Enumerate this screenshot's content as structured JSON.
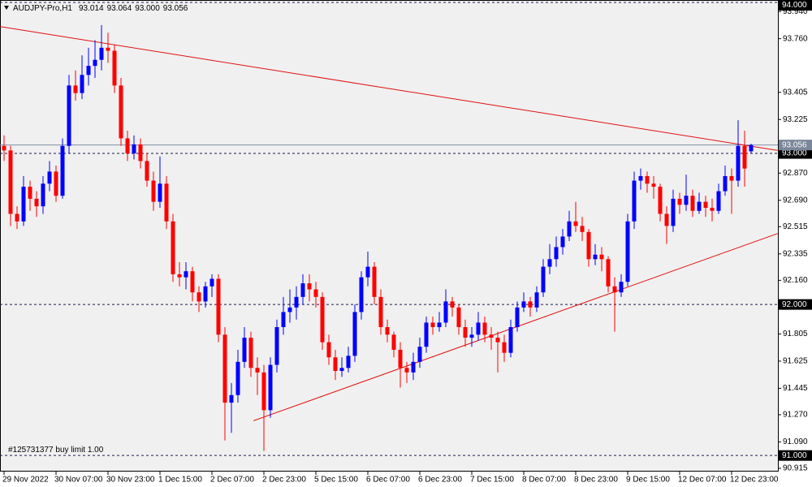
{
  "chart_data": {
    "type": "candlestick",
    "title": "AUDJPY-Pro,H1",
    "header_values": [
      "93.014",
      "93.064",
      "93.000",
      "93.056"
    ],
    "up_color": "#0000ff",
    "down_color": "#ff0000",
    "background": "#f0f0f0",
    "grid": false,
    "ylim": [
      90.915,
      94.0
    ],
    "yticks": [
      {
        "value": 93.94,
        "label": "93.940"
      },
      {
        "value": 93.76,
        "label": "93.760"
      },
      {
        "value": 93.405,
        "label": "93.405"
      },
      {
        "value": 93.225,
        "label": "93.225"
      },
      {
        "value": 92.87,
        "label": "92.870"
      },
      {
        "value": 92.69,
        "label": "92.690"
      },
      {
        "value": 92.515,
        "label": "92.515"
      },
      {
        "value": 92.335,
        "label": "92.335"
      },
      {
        "value": 92.16,
        "label": "92.160"
      },
      {
        "value": 91.805,
        "label": "91.805"
      },
      {
        "value": 91.625,
        "label": "91.625"
      },
      {
        "value": 91.445,
        "label": "91.445"
      },
      {
        "value": 91.27,
        "label": "91.270"
      },
      {
        "value": 91.09,
        "label": "91.090"
      },
      {
        "value": 90.915,
        "label": "90.915"
      }
    ],
    "levels": [
      {
        "value": 94.0,
        "label": "94.000"
      },
      {
        "value": 93.0,
        "label": "93.000"
      },
      {
        "value": 92.0,
        "label": "92.000"
      },
      {
        "value": 91.0,
        "label": "91.000",
        "note": "#125731377 buy limit 1.00"
      }
    ],
    "current_price": {
      "value": 93.056,
      "label": "93.056"
    },
    "trendlines": [
      {
        "color": "#e01010",
        "points": [
          [
            -0.6,
            93.84
          ],
          [
            119.1,
            93.02
          ]
        ]
      },
      {
        "color": "#e01010",
        "points": [
          [
            38.4,
            91.23
          ],
          [
            119.1,
            92.47
          ]
        ]
      }
    ],
    "categories": [
      "29 Nov 2022",
      null,
      null,
      null,
      null,
      null,
      null,
      null,
      "30 Nov 07:00",
      null,
      null,
      null,
      null,
      null,
      null,
      null,
      "30 Nov 23:00",
      null,
      null,
      null,
      null,
      null,
      null,
      null,
      "1 Dec 15:00",
      null,
      null,
      null,
      null,
      null,
      null,
      null,
      "2 Dec 07:00",
      null,
      null,
      null,
      null,
      null,
      null,
      null,
      "2 Dec 23:00",
      null,
      null,
      null,
      null,
      null,
      null,
      null,
      "5 Dec 15:00",
      null,
      null,
      null,
      null,
      null,
      null,
      null,
      "6 Dec 07:00",
      null,
      null,
      null,
      null,
      null,
      null,
      null,
      "6 Dec 23:00",
      null,
      null,
      null,
      null,
      null,
      null,
      null,
      "7 Dec 15:00",
      null,
      null,
      null,
      null,
      null,
      null,
      null,
      "8 Dec 07:00",
      null,
      null,
      null,
      null,
      null,
      null,
      null,
      "8 Dec 23:00",
      null,
      null,
      null,
      null,
      null,
      null,
      null,
      "9 Dec 15:00",
      null,
      null,
      null,
      null,
      null,
      null,
      null,
      "12 Dec 07:00",
      null,
      null,
      null,
      null,
      null,
      null,
      null,
      "12 Dec 23:00",
      null,
      null,
      null
    ],
    "ohlc": [
      [
        93.05,
        93.12,
        92.95,
        93.02
      ],
      [
        93.02,
        93.05,
        92.52,
        92.6
      ],
      [
        92.6,
        92.65,
        92.5,
        92.55
      ],
      [
        92.55,
        92.85,
        92.52,
        92.78
      ],
      [
        92.78,
        92.82,
        92.62,
        92.7
      ],
      [
        92.7,
        92.75,
        92.58,
        92.65
      ],
      [
        92.65,
        92.85,
        92.6,
        92.8
      ],
      [
        92.8,
        92.95,
        92.75,
        92.88
      ],
      [
        92.88,
        92.92,
        92.68,
        92.72
      ],
      [
        92.72,
        93.1,
        92.7,
        93.05
      ],
      [
        93.05,
        93.52,
        93.0,
        93.45
      ],
      [
        93.45,
        93.55,
        93.35,
        93.4
      ],
      [
        93.4,
        93.65,
        93.36,
        93.52
      ],
      [
        93.52,
        93.7,
        93.45,
        93.58
      ],
      [
        93.58,
        93.75,
        93.5,
        93.62
      ],
      [
        93.62,
        93.85,
        93.55,
        93.7
      ],
      [
        93.7,
        93.8,
        93.6,
        93.68
      ],
      [
        93.68,
        93.72,
        93.4,
        93.45
      ],
      [
        93.45,
        93.5,
        93.05,
        93.1
      ],
      [
        93.1,
        93.15,
        92.95,
        93.0
      ],
      [
        93.0,
        93.12,
        92.96,
        93.06
      ],
      [
        93.06,
        93.1,
        92.9,
        92.95
      ],
      [
        92.95,
        93.0,
        92.78,
        92.82
      ],
      [
        92.82,
        92.88,
        92.62,
        92.68
      ],
      [
        92.68,
        92.98,
        92.64,
        92.8
      ],
      [
        92.8,
        92.85,
        92.5,
        92.55
      ],
      [
        92.55,
        92.6,
        92.15,
        92.2
      ],
      [
        92.2,
        92.28,
        92.12,
        92.18
      ],
      [
        92.18,
        92.28,
        92.1,
        92.22
      ],
      [
        92.22,
        92.25,
        92.02,
        92.08
      ],
      [
        92.08,
        92.12,
        91.95,
        92.02
      ],
      [
        92.02,
        92.15,
        91.98,
        92.12
      ],
      [
        92.12,
        92.2,
        92.05,
        92.17
      ],
      [
        92.17,
        92.2,
        91.75,
        91.8
      ],
      [
        91.8,
        91.85,
        91.1,
        91.35
      ],
      [
        91.35,
        91.48,
        91.15,
        91.4
      ],
      [
        91.4,
        91.7,
        91.35,
        91.62
      ],
      [
        91.62,
        91.85,
        91.58,
        91.78
      ],
      [
        91.78,
        91.82,
        91.52,
        91.58
      ],
      [
        91.58,
        91.65,
        91.4,
        91.55
      ],
      [
        91.55,
        91.6,
        91.03,
        91.3
      ],
      [
        91.3,
        91.65,
        91.25,
        91.6
      ],
      [
        91.6,
        91.9,
        91.55,
        91.85
      ],
      [
        91.85,
        92.05,
        91.8,
        91.95
      ],
      [
        91.95,
        92.1,
        91.88,
        91.98
      ],
      [
        91.98,
        92.12,
        91.9,
        92.05
      ],
      [
        92.05,
        92.2,
        92.0,
        92.14
      ],
      [
        92.14,
        92.2,
        92.02,
        92.1
      ],
      [
        92.1,
        92.15,
        91.98,
        92.05
      ],
      [
        92.05,
        92.08,
        91.7,
        91.75
      ],
      [
        91.75,
        91.8,
        91.6,
        91.65
      ],
      [
        91.65,
        91.7,
        91.5,
        91.56
      ],
      [
        91.56,
        91.65,
        91.52,
        91.58
      ],
      [
        91.58,
        91.72,
        91.55,
        91.66
      ],
      [
        91.66,
        92.0,
        91.62,
        91.95
      ],
      [
        91.95,
        92.22,
        91.9,
        92.18
      ],
      [
        92.18,
        92.35,
        92.12,
        92.25
      ],
      [
        92.25,
        92.28,
        92.0,
        92.05
      ],
      [
        92.05,
        92.1,
        91.8,
        91.85
      ],
      [
        91.85,
        91.9,
        91.75,
        91.8
      ],
      [
        91.8,
        91.82,
        91.65,
        91.7
      ],
      [
        91.7,
        91.75,
        91.45,
        91.58
      ],
      [
        91.58,
        91.62,
        91.48,
        91.55
      ],
      [
        91.55,
        91.68,
        91.5,
        91.62
      ],
      [
        91.62,
        91.78,
        91.58,
        91.72
      ],
      [
        91.72,
        91.92,
        91.68,
        91.88
      ],
      [
        91.88,
        91.92,
        91.8,
        91.85
      ],
      [
        91.85,
        91.95,
        91.82,
        91.88
      ],
      [
        91.88,
        92.1,
        91.85,
        92.02
      ],
      [
        92.02,
        92.05,
        91.92,
        91.98
      ],
      [
        91.98,
        92.0,
        91.8,
        91.85
      ],
      [
        91.85,
        91.9,
        91.72,
        91.78
      ],
      [
        91.78,
        91.85,
        91.72,
        91.8
      ],
      [
        91.8,
        91.95,
        91.76,
        91.88
      ],
      [
        91.88,
        91.92,
        91.75,
        91.8
      ],
      [
        91.8,
        91.85,
        91.7,
        91.78
      ],
      [
        91.78,
        91.82,
        91.55,
        91.75
      ],
      [
        91.75,
        91.8,
        91.62,
        91.68
      ],
      [
        91.68,
        91.9,
        91.65,
        91.85
      ],
      [
        91.85,
        92.02,
        91.82,
        91.98
      ],
      [
        91.98,
        92.08,
        91.95,
        92.02
      ],
      [
        92.02,
        92.05,
        91.92,
        91.98
      ],
      [
        91.98,
        92.12,
        91.95,
        92.08
      ],
      [
        92.08,
        92.3,
        92.05,
        92.25
      ],
      [
        92.25,
        92.4,
        92.2,
        92.3
      ],
      [
        92.3,
        92.45,
        92.25,
        92.38
      ],
      [
        92.38,
        92.5,
        92.33,
        92.45
      ],
      [
        92.45,
        92.62,
        92.42,
        92.55
      ],
      [
        92.55,
        92.68,
        92.48,
        92.52
      ],
      [
        92.52,
        92.58,
        92.42,
        92.48
      ],
      [
        92.48,
        92.5,
        92.25,
        92.3
      ],
      [
        92.3,
        92.4,
        92.26,
        92.33
      ],
      [
        92.33,
        92.38,
        92.22,
        92.3
      ],
      [
        92.3,
        92.32,
        92.08,
        92.12
      ],
      [
        92.12,
        92.18,
        91.82,
        92.08
      ],
      [
        92.08,
        92.2,
        92.05,
        92.15
      ],
      [
        92.15,
        92.6,
        92.12,
        92.55
      ],
      [
        92.55,
        92.88,
        92.5,
        92.82
      ],
      [
        92.82,
        92.9,
        92.76,
        92.85
      ],
      [
        92.85,
        92.88,
        92.74,
        92.8
      ],
      [
        92.8,
        92.85,
        92.7,
        92.78
      ],
      [
        92.78,
        92.8,
        92.55,
        92.6
      ],
      [
        92.6,
        92.65,
        92.4,
        92.52
      ],
      [
        92.52,
        92.76,
        92.48,
        92.7
      ],
      [
        92.7,
        92.74,
        92.6,
        92.66
      ],
      [
        92.66,
        92.86,
        92.62,
        92.72
      ],
      [
        92.72,
        92.76,
        92.58,
        92.62
      ],
      [
        92.62,
        92.74,
        92.6,
        92.68
      ],
      [
        92.68,
        92.72,
        92.58,
        92.64
      ],
      [
        92.64,
        92.7,
        92.55,
        92.62
      ],
      [
        92.62,
        92.8,
        92.6,
        92.75
      ],
      [
        92.75,
        92.92,
        92.72,
        92.85
      ],
      [
        92.85,
        92.9,
        92.6,
        92.82
      ],
      [
        92.82,
        93.22,
        92.78,
        93.05
      ],
      [
        93.05,
        93.15,
        92.78,
        92.9
      ],
      [
        93.014,
        93.064,
        93.0,
        93.056
      ]
    ]
  }
}
